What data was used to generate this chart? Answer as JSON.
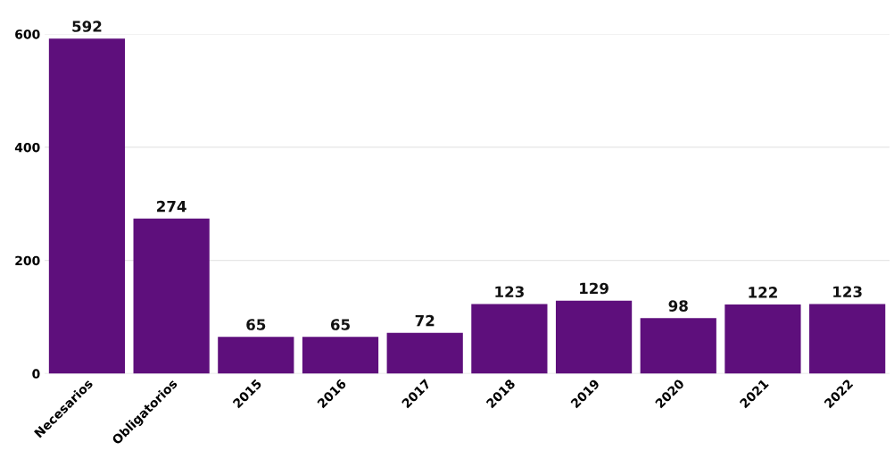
{
  "chart_data": {
    "type": "bar",
    "categories": [
      "Necesarios",
      "Obligatorios",
      "2015",
      "2016",
      "2017",
      "2018",
      "2019",
      "2020",
      "2021",
      "2022"
    ],
    "values": [
      592,
      274,
      65,
      65,
      72,
      123,
      129,
      98,
      122,
      123
    ],
    "color": "#5e0f7c",
    "ylim": [
      0,
      600
    ],
    "yticks": [
      0,
      200,
      400,
      600
    ],
    "grid": "y",
    "data_labels": true,
    "legend": false
  }
}
